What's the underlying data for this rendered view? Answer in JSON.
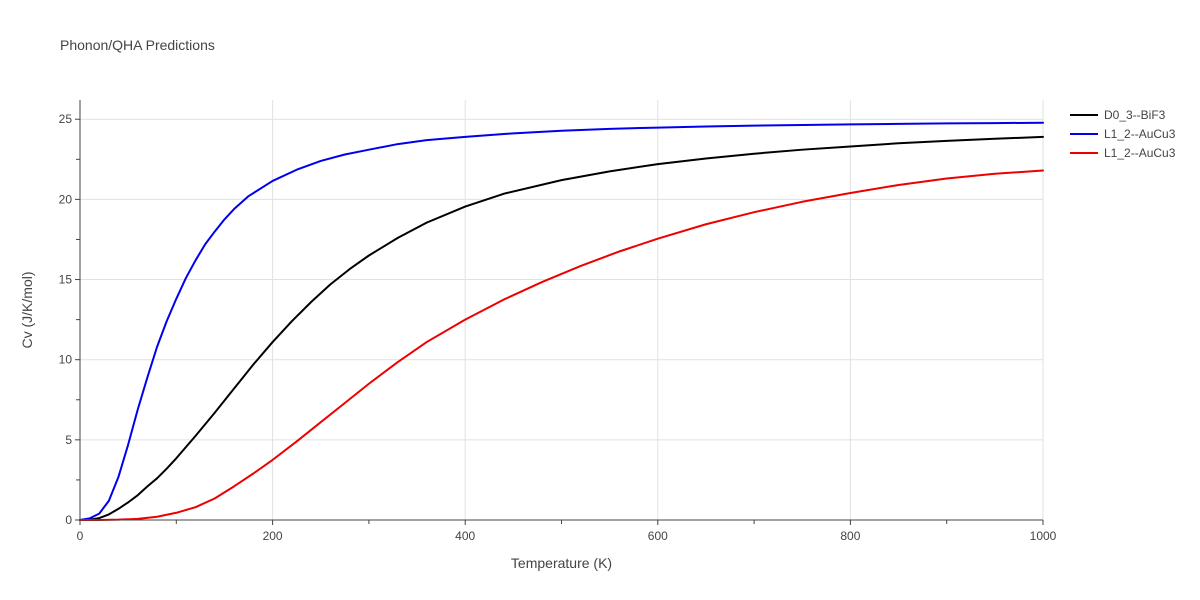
{
  "chart_data": {
    "type": "line",
    "title": "Phonon/QHA Predictions",
    "xlabel": "Temperature (K)",
    "ylabel": "Cv (J/K/mol)",
    "xlim": [
      0,
      1000
    ],
    "ylim": [
      0,
      26.2
    ],
    "x_ticks": [
      0,
      200,
      400,
      600,
      800,
      1000
    ],
    "y_ticks": [
      0,
      5,
      10,
      15,
      20,
      25
    ],
    "grid": true,
    "legend_position": "top-right",
    "series": [
      {
        "name": "D0_3--BiF3",
        "color": "#000000",
        "x": [
          0,
          10,
          20,
          30,
          40,
          50,
          60,
          70,
          80,
          90,
          100,
          120,
          140,
          160,
          180,
          200,
          220,
          240,
          260,
          280,
          300,
          330,
          360,
          400,
          440,
          500,
          550,
          600,
          650,
          700,
          750,
          800,
          850,
          900,
          950,
          1000
        ],
        "y": [
          0,
          0.02,
          0.12,
          0.35,
          0.7,
          1.1,
          1.55,
          2.1,
          2.6,
          3.2,
          3.85,
          5.25,
          6.7,
          8.2,
          9.7,
          11.1,
          12.4,
          13.6,
          14.7,
          15.65,
          16.5,
          17.6,
          18.55,
          19.55,
          20.35,
          21.2,
          21.75,
          22.2,
          22.55,
          22.85,
          23.1,
          23.3,
          23.5,
          23.65,
          23.78,
          23.9
        ]
      },
      {
        "name": "L1_2--AuCu3",
        "color": "#0000ee",
        "x": [
          0,
          10,
          20,
          30,
          40,
          50,
          60,
          70,
          80,
          90,
          100,
          110,
          120,
          130,
          140,
          150,
          160,
          175,
          200,
          225,
          250,
          275,
          300,
          330,
          360,
          400,
          450,
          500,
          550,
          600,
          650,
          700,
          750,
          800,
          850,
          900,
          950,
          1000
        ],
        "y": [
          0,
          0.1,
          0.4,
          1.2,
          2.7,
          4.7,
          6.9,
          8.9,
          10.8,
          12.4,
          13.8,
          15.1,
          16.2,
          17.2,
          18.0,
          18.75,
          19.4,
          20.2,
          21.15,
          21.85,
          22.4,
          22.8,
          23.1,
          23.45,
          23.7,
          23.9,
          24.12,
          24.28,
          24.4,
          24.48,
          24.55,
          24.6,
          24.64,
          24.68,
          24.71,
          24.74,
          24.76,
          24.78
        ]
      },
      {
        "name": "L1_2--AuCu3",
        "color": "#ee0000",
        "x": [
          0,
          20,
          40,
          60,
          80,
          100,
          120,
          140,
          160,
          180,
          200,
          225,
          250,
          275,
          300,
          330,
          360,
          400,
          440,
          480,
          520,
          560,
          600,
          650,
          700,
          750,
          800,
          850,
          900,
          950,
          1000
        ],
        "y": [
          0,
          0.0,
          0.02,
          0.07,
          0.2,
          0.45,
          0.8,
          1.35,
          2.1,
          2.9,
          3.75,
          4.9,
          6.1,
          7.3,
          8.5,
          9.85,
          11.1,
          12.5,
          13.75,
          14.85,
          15.85,
          16.75,
          17.55,
          18.45,
          19.2,
          19.85,
          20.4,
          20.9,
          21.3,
          21.6,
          21.8
        ]
      }
    ]
  }
}
